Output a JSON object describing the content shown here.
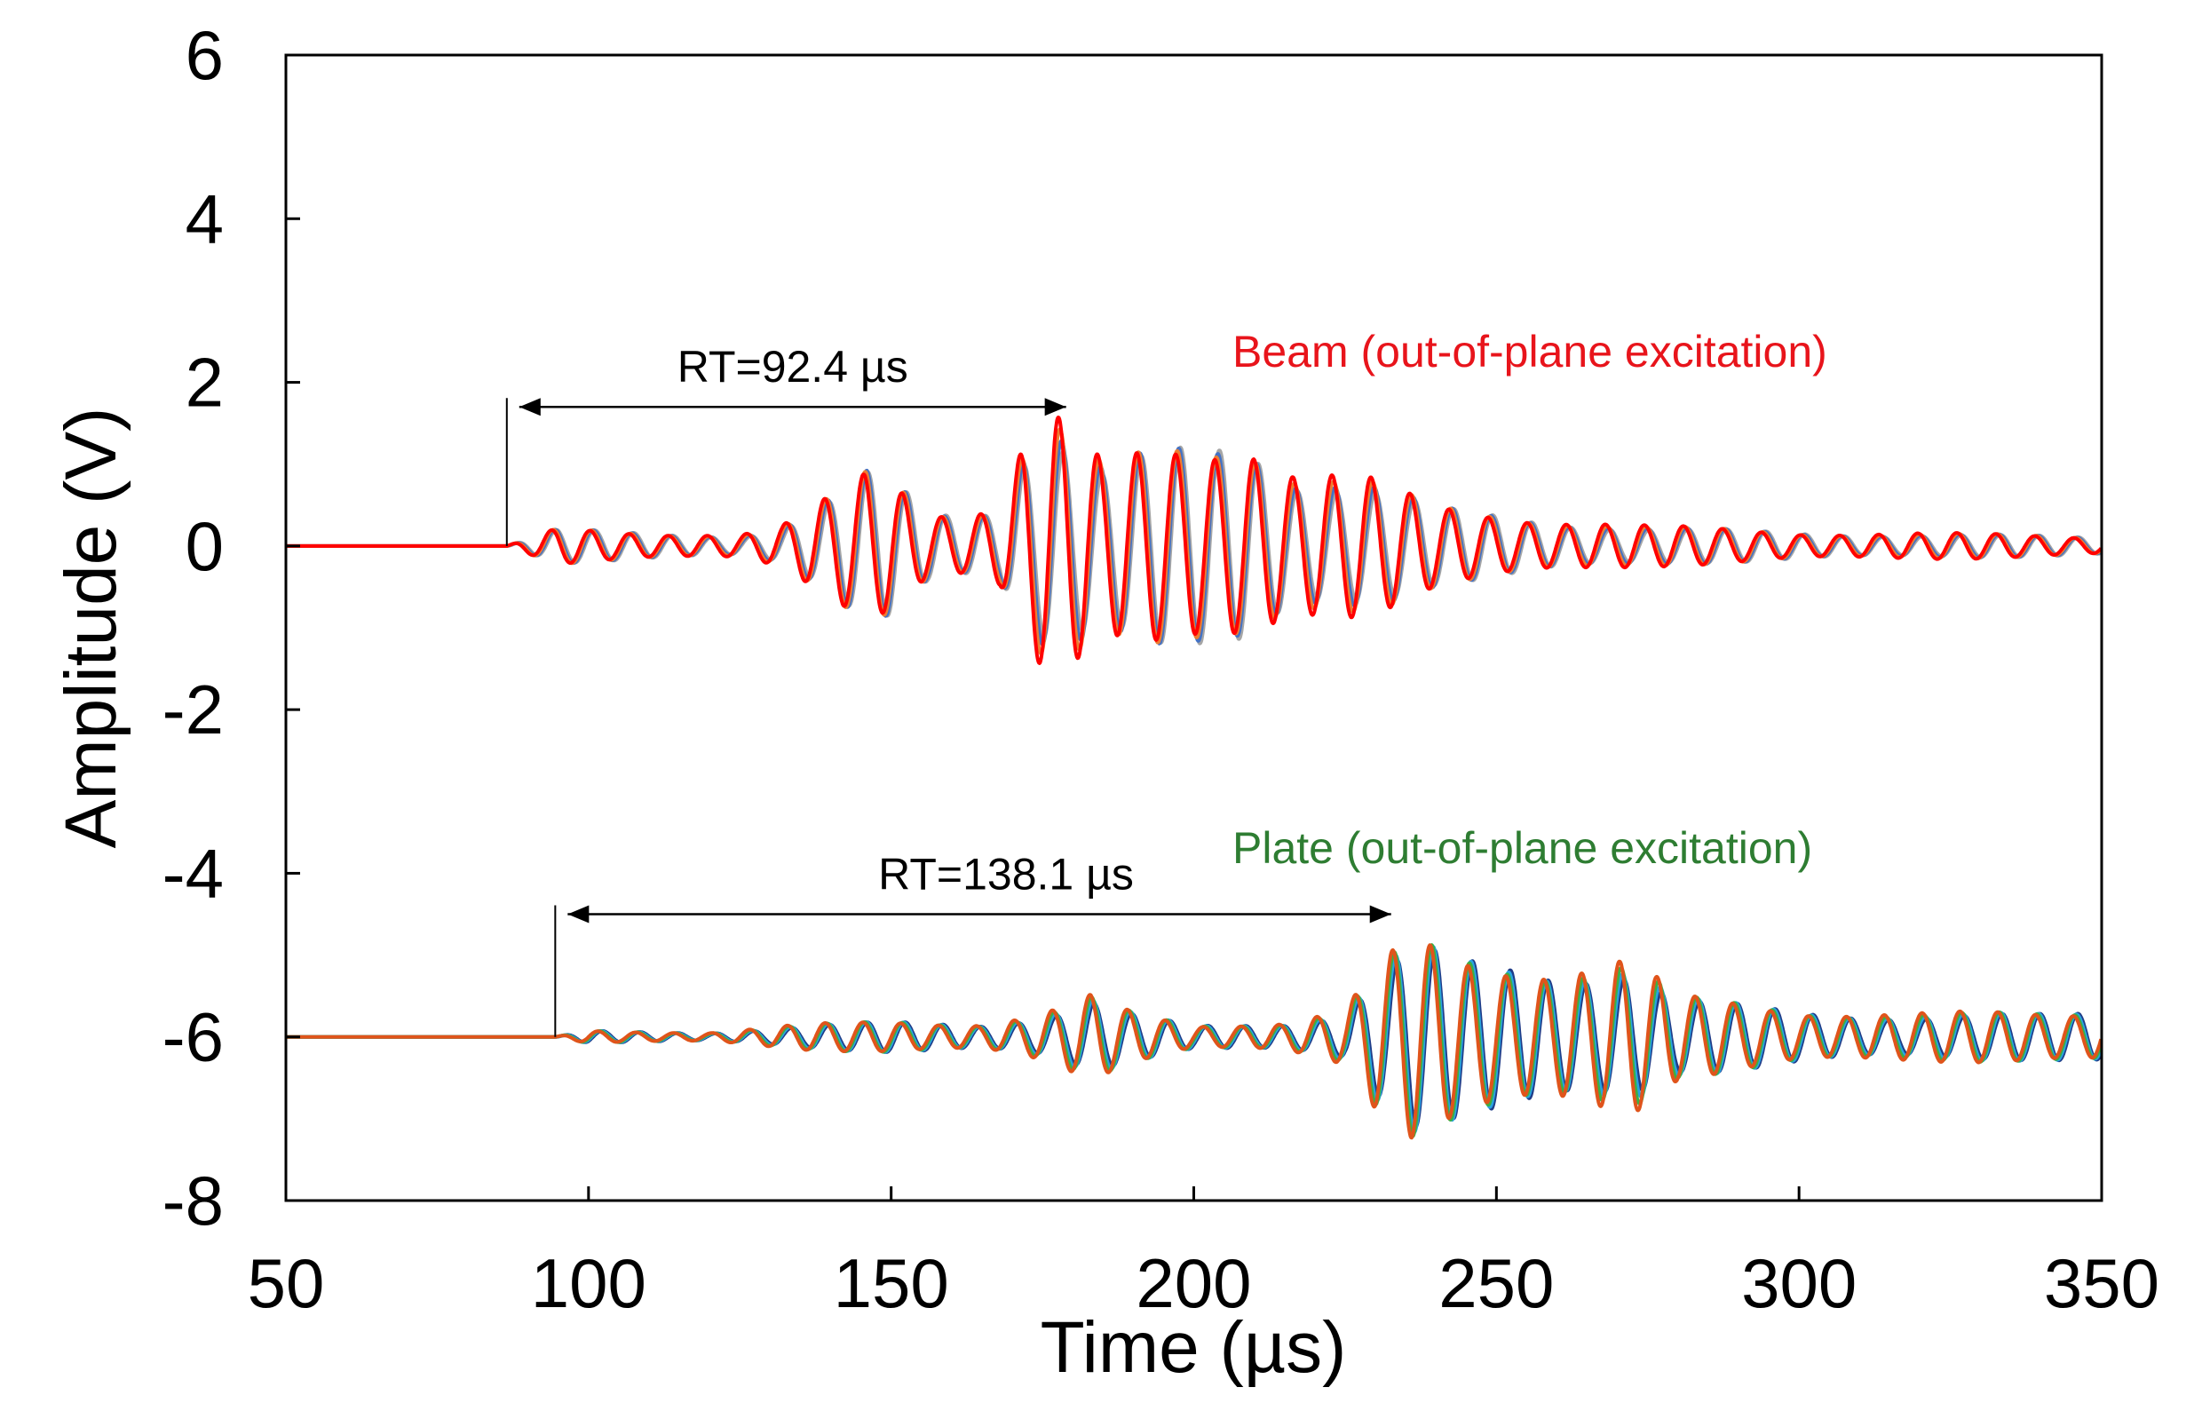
{
  "chart_data": {
    "type": "line",
    "title": "",
    "xlabel": "Time (µs)",
    "ylabel": "Amplitude (V)",
    "xlim": [
      50,
      350
    ],
    "ylim": [
      -8,
      6
    ],
    "xticks": [
      50,
      100,
      150,
      200,
      250,
      300,
      350
    ],
    "yticks": [
      -8,
      -6,
      -4,
      -2,
      0,
      2,
      4,
      6
    ],
    "xtick_labels": [
      "50",
      "100",
      "150",
      "200",
      "250",
      "300",
      "350"
    ],
    "ytick_labels": [
      "-8",
      "-6",
      "-4",
      "-2",
      "0",
      "2",
      "4",
      "6"
    ],
    "grid": false,
    "groups": [
      {
        "label": "Beam (out-of-plane excitation)",
        "label_color": "#e8141b",
        "offset": 0,
        "onset": 86.5,
        "series_colors": [
          "#a6a6a6",
          "#4472c4",
          "#ed7d31",
          "#ff0000"
        ],
        "envelope": [
          [
            50,
            0
          ],
          [
            86.5,
            0
          ],
          [
            95,
            0.22
          ],
          [
            110,
            0.18
          ],
          [
            125,
            0.15
          ],
          [
            132,
            0.25
          ],
          [
            140,
            0.6
          ],
          [
            146,
            0.95
          ],
          [
            150,
            0.9
          ],
          [
            156,
            0.5
          ],
          [
            162,
            0.45
          ],
          [
            168,
            0.6
          ],
          [
            172,
            1.45
          ],
          [
            177,
            1.65
          ],
          [
            185,
            1.0
          ],
          [
            195,
            1.25
          ],
          [
            202,
            1.35
          ],
          [
            209,
            1.5
          ],
          [
            217,
            1.0
          ],
          [
            228,
            0.85
          ],
          [
            240,
            0.5
          ],
          [
            260,
            0.35
          ],
          [
            275,
            0.25
          ],
          [
            300,
            0.18
          ],
          [
            330,
            0.15
          ],
          [
            350,
            0.12
          ]
        ],
        "cycles_per_us": 0.155,
        "annotation": {
          "text": "RT=92.4 µs",
          "value_us": 92.4,
          "start": 86.5,
          "end": 178.9,
          "y": 1.7
        }
      },
      {
        "label": "Plate (out-of-plane excitation)",
        "label_color": "#2e7d32",
        "offset": -6,
        "onset": 94.5,
        "series_colors": [
          "#1f3c88",
          "#29a3e0",
          "#3cb043",
          "#e0541b"
        ],
        "envelope": [
          [
            50,
            0
          ],
          [
            94.5,
            0
          ],
          [
            100,
            0.08
          ],
          [
            120,
            0.06
          ],
          [
            135,
            0.15
          ],
          [
            150,
            0.2
          ],
          [
            165,
            0.18
          ],
          [
            175,
            0.3
          ],
          [
            183,
            0.5
          ],
          [
            190,
            0.3
          ],
          [
            200,
            0.15
          ],
          [
            215,
            0.2
          ],
          [
            225,
            0.35
          ],
          [
            230,
            0.85
          ],
          [
            236,
            1.2
          ],
          [
            245,
            1.0
          ],
          [
            260,
            0.95
          ],
          [
            272,
            1.0
          ],
          [
            280,
            0.5
          ],
          [
            300,
            0.35
          ],
          [
            320,
            0.3
          ],
          [
            340,
            0.3
          ],
          [
            350,
            0.35
          ]
        ],
        "cycles_per_us": 0.16,
        "annotation": {
          "text": "RT=138.1 µs",
          "value_us": 138.1,
          "start": 94.5,
          "end": 232.6,
          "y": -4.5
        }
      }
    ]
  }
}
